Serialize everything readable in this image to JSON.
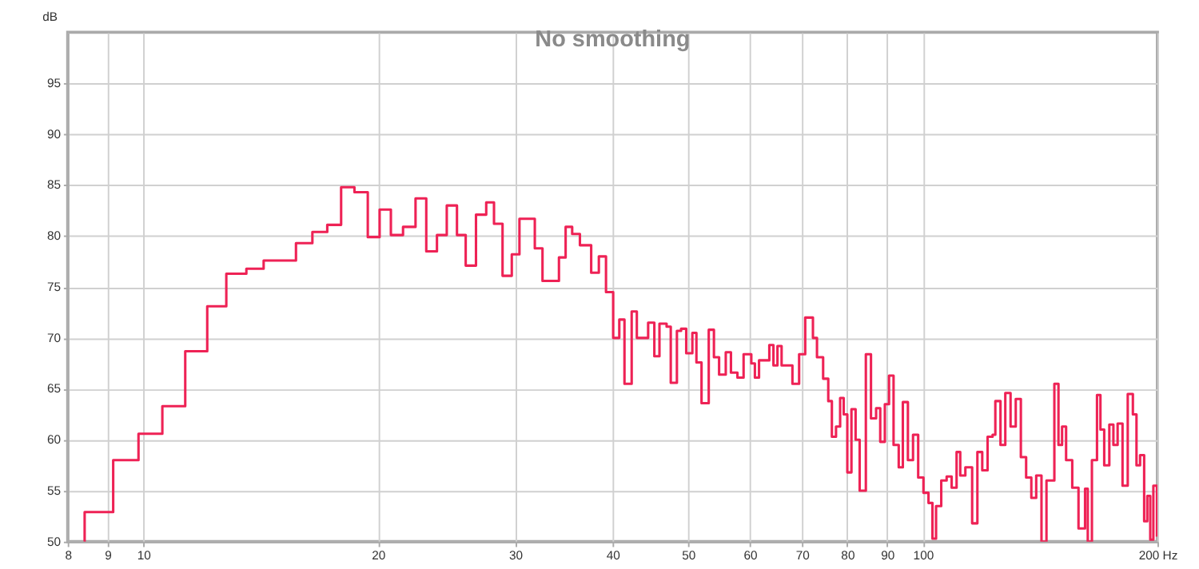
{
  "chart_data": {
    "type": "step",
    "title": "No smoothing",
    "ylabel": "dB",
    "x": [
      8.4,
      8.41,
      9.15,
      9.86,
      10.58,
      11.32,
      12.08,
      12.78,
      13.56,
      14.27,
      15.7,
      16.48,
      17.22,
      17.94,
      18.66,
      19.41,
      20.1,
      20.78,
      21.54,
      22.35,
      23.07,
      23.81,
      24.51,
      25.26,
      25.92,
      26.72,
      27.54,
      28.18,
      28.9,
      29.7,
      30.38,
      31.79,
      32.52,
      34.14,
      34.82,
      35.5,
      36.32,
      37.55,
      38.41,
      39.23,
      40.07,
      40.8,
      41.43,
      42.32,
      42.97,
      44.43,
      45.25,
      45.94,
      46.92,
      47.5,
      48.37,
      48.97,
      49.72,
      50.63,
      51.24,
      52.02,
      53.14,
      53.96,
      54.79,
      55.88,
      56.74,
      57.84,
      58.9,
      60.26,
      60.9,
      61.65,
      63.55,
      64.33,
      65.1,
      65.9,
      68.04,
      69.4,
      70.66,
      72.29,
      73.16,
      74.5,
      75.64,
      76.45,
      77.39,
      78.34,
      79.17,
      80.02,
      81.0,
      82.0,
      82.99,
      84.52,
      85.81,
      87.12,
      88.19,
      89.4,
      90.51,
      91.73,
      93.14,
      94.28,
      95.7,
      97.16,
      98.65,
      100.2,
      101.7,
      102.9,
      104.0,
      105.6,
      107.3,
      108.9,
      110.5,
      111.7,
      113.4,
      115.7,
      117.5,
      119.2,
      121.1,
      122.9,
      123.9,
      125.8,
      127.6,
      129.6,
      131.6,
      133.6,
      135.7,
      137.8,
      139.8,
      142.0,
      144.1,
      147.5,
      149.3,
      150.9,
      152.7,
      155.5,
      158.4,
      161.5,
      162.8,
      164.8,
      167.3,
      169.0,
      170.9,
      173.5,
      175.6,
      177.8,
      180.4,
      183.2,
      186.0,
      188.0,
      190.0,
      192.3,
      194.1,
      195.8,
      197.6,
      199.7
    ],
    "series": [
      {
        "color": "#ee2255",
        "values": [
          50.0,
          52.9,
          58.0,
          60.6,
          63.3,
          68.7,
          73.1,
          76.3,
          76.8,
          77.6,
          79.3,
          80.4,
          81.1,
          84.8,
          84.3,
          79.9,
          82.6,
          80.1,
          80.9,
          83.7,
          78.5,
          80.1,
          83.0,
          80.1,
          77.1,
          82.1,
          83.3,
          81.2,
          76.1,
          78.2,
          81.7,
          78.8,
          75.6,
          77.9,
          80.9,
          80.2,
          79.1,
          76.4,
          78.0,
          74.5,
          70.0,
          71.8,
          65.5,
          72.6,
          70.0,
          71.5,
          68.2,
          71.4,
          71.1,
          65.6,
          70.7,
          70.9,
          68.5,
          70.5,
          67.6,
          63.6,
          70.8,
          68.1,
          66.4,
          68.6,
          66.6,
          66.1,
          68.4,
          67.5,
          66.1,
          67.8,
          69.3,
          67.3,
          69.2,
          67.3,
          65.5,
          68.4,
          72.0,
          70.0,
          68.1,
          66.0,
          63.8,
          60.3,
          61.3,
          64.1,
          62.5,
          56.8,
          63.0,
          60.0,
          55.0,
          68.4,
          62.1,
          63.1,
          59.8,
          63.5,
          66.3,
          59.5,
          57.3,
          63.7,
          58.0,
          60.5,
          56.3,
          54.8,
          53.8,
          50.3,
          53.5,
          56.0,
          56.4,
          55.3,
          58.8,
          56.5,
          57.3,
          51.8,
          58.8,
          57.0,
          60.3,
          60.5,
          63.8,
          59.5,
          64.6,
          61.3,
          64.0,
          58.3,
          56.3,
          54.3,
          56.5,
          50.0,
          56.0,
          65.5,
          59.5,
          61.3,
          58.0,
          55.3,
          51.3,
          55.2,
          50.0,
          58.0,
          64.4,
          61.0,
          57.5,
          61.5,
          59.5,
          61.6,
          55.5,
          64.5,
          62.5,
          57.5,
          58.5,
          52.0,
          54.5,
          50.2,
          55.5,
          50.5
        ]
      }
    ],
    "xlim": [
      8,
      200
    ],
    "log": "x",
    "xticks": [
      8,
      9,
      10,
      20,
      30,
      40,
      50,
      60,
      70,
      80,
      90,
      100,
      {
        "value": 200,
        "label": "200 Hz"
      }
    ],
    "ylim": [
      50,
      100
    ],
    "yticks": [
      50,
      55,
      60,
      65,
      70,
      75,
      80,
      85,
      90,
      95
    ],
    "grid": true,
    "line_style": "solid",
    "marker": "none"
  }
}
